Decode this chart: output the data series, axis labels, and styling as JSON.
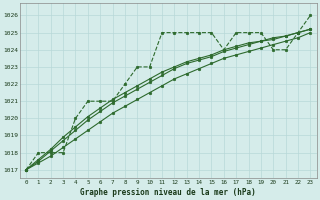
{
  "background_color": "#d5ecea",
  "grid_color": "#b8d8d8",
  "line_color": "#2d6a2d",
  "xlabel": "Graphe pression niveau de la mer (hPa)",
  "ylabel_ticks": [
    1017,
    1018,
    1019,
    1020,
    1021,
    1022,
    1023,
    1024,
    1025,
    1026
  ],
  "xlim": [
    -0.5,
    23.5
  ],
  "ylim": [
    1016.5,
    1026.7
  ],
  "series": [
    {
      "x": [
        0,
        1,
        2,
        3,
        4,
        5,
        6,
        7,
        8,
        9,
        10,
        11,
        12,
        13,
        14,
        15,
        16,
        17,
        18,
        19,
        20,
        21,
        22,
        23
      ],
      "y": [
        1017.0,
        1018.0,
        1018.0,
        1018.0,
        1020.0,
        1021.0,
        1021.0,
        1021.0,
        1022.0,
        1023.0,
        1023.0,
        1025.0,
        1025.0,
        1025.0,
        1025.0,
        1025.0,
        1024.0,
        1025.0,
        1025.0,
        1025.0,
        1024.0,
        1024.0,
        1025.0,
        1026.0
      ],
      "linestyle": "--",
      "marker": "o"
    },
    {
      "x": [
        0,
        1,
        2,
        3,
        4,
        5,
        6,
        7,
        8,
        9,
        10,
        11,
        12,
        13,
        14,
        15,
        16,
        17,
        18,
        19,
        20,
        21,
        22,
        23
      ],
      "y": [
        1017.0,
        1017.4,
        1017.8,
        1018.3,
        1018.8,
        1019.3,
        1019.8,
        1020.3,
        1020.7,
        1021.1,
        1021.5,
        1021.9,
        1022.3,
        1022.6,
        1022.9,
        1023.2,
        1023.5,
        1023.7,
        1023.9,
        1024.1,
        1024.3,
        1024.5,
        1024.7,
        1025.0
      ],
      "linestyle": "-",
      "marker": "o"
    },
    {
      "x": [
        0,
        1,
        2,
        3,
        4,
        5,
        6,
        7,
        8,
        9,
        10,
        11,
        12,
        13,
        14,
        15,
        16,
        17,
        18,
        19,
        20,
        21,
        22,
        23
      ],
      "y": [
        1017.0,
        1017.5,
        1018.1,
        1018.7,
        1019.3,
        1019.9,
        1020.4,
        1020.9,
        1021.3,
        1021.7,
        1022.1,
        1022.5,
        1022.9,
        1023.2,
        1023.4,
        1023.6,
        1023.9,
        1024.1,
        1024.3,
        1024.5,
        1024.6,
        1024.8,
        1025.0,
        1025.2
      ],
      "linestyle": "-",
      "marker": "o"
    },
    {
      "x": [
        0,
        1,
        2,
        3,
        4,
        5,
        6,
        7,
        8,
        9,
        10,
        11,
        12,
        13,
        14,
        15,
        16,
        17,
        18,
        19,
        20,
        21,
        22,
        23
      ],
      "y": [
        1017.0,
        1017.6,
        1018.2,
        1018.9,
        1019.5,
        1020.1,
        1020.6,
        1021.1,
        1021.5,
        1021.9,
        1022.3,
        1022.7,
        1023.0,
        1023.3,
        1023.5,
        1023.7,
        1024.0,
        1024.2,
        1024.4,
        1024.5,
        1024.7,
        1024.8,
        1025.0,
        1025.2
      ],
      "linestyle": "-",
      "marker": "o"
    }
  ],
  "xtick_labels": [
    "0",
    "1",
    "2",
    "3",
    "4",
    "5",
    "6",
    "7",
    "8",
    "9",
    "10",
    "11",
    "12",
    "13",
    "14",
    "15",
    "16",
    "17",
    "18",
    "19",
    "20",
    "21",
    "22",
    "23"
  ]
}
